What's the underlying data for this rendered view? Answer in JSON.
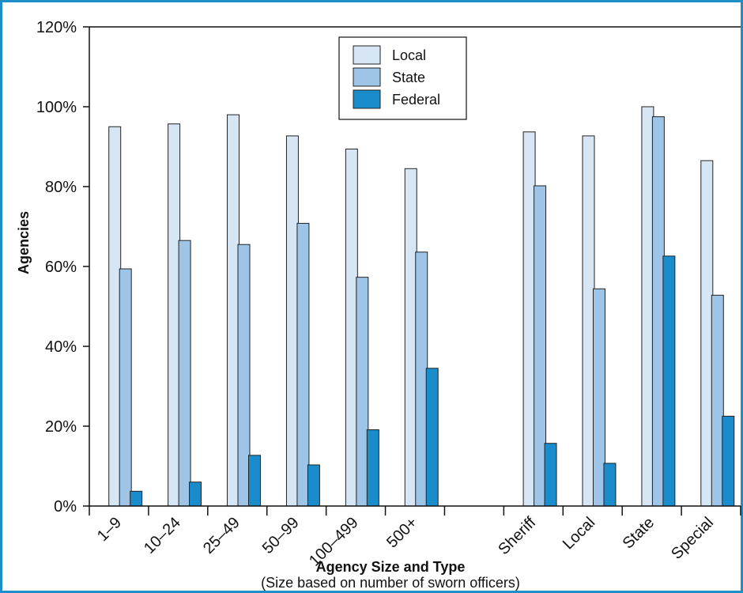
{
  "chart_data": {
    "type": "bar",
    "categories": [
      "1–9",
      "10–24",
      "25–49",
      "50–99",
      "100–499",
      "500+",
      "",
      "Sheriff",
      "Local",
      "State",
      "Special"
    ],
    "series": [
      {
        "name": "Local",
        "values": [
          95,
          95.7,
          98,
          92.7,
          89.4,
          84.5,
          null,
          93.7,
          92.7,
          100,
          86.5
        ]
      },
      {
        "name": "State",
        "values": [
          59.4,
          66.5,
          65.5,
          70.8,
          57.3,
          63.6,
          null,
          80.2,
          54.4,
          97.5,
          52.8
        ]
      },
      {
        "name": "Federal",
        "values": [
          3.7,
          6,
          12.7,
          10.3,
          19.1,
          34.5,
          null,
          15.7,
          10.7,
          62.6,
          22.5
        ]
      }
    ],
    "colors": [
      "#d6e6f5",
      "#9ec5e8",
      "#1a8ccc"
    ],
    "ylabel": "Agencies",
    "xlabel": "Agency Size and Type",
    "xlabel_sub": "(Size based on number of sworn officers)",
    "ylim": [
      0,
      120
    ],
    "yticks": [
      "0%",
      "20%",
      "40%",
      "60%",
      "80%",
      "100%",
      "120%"
    ],
    "grid": false,
    "legend_position": "top-center"
  }
}
